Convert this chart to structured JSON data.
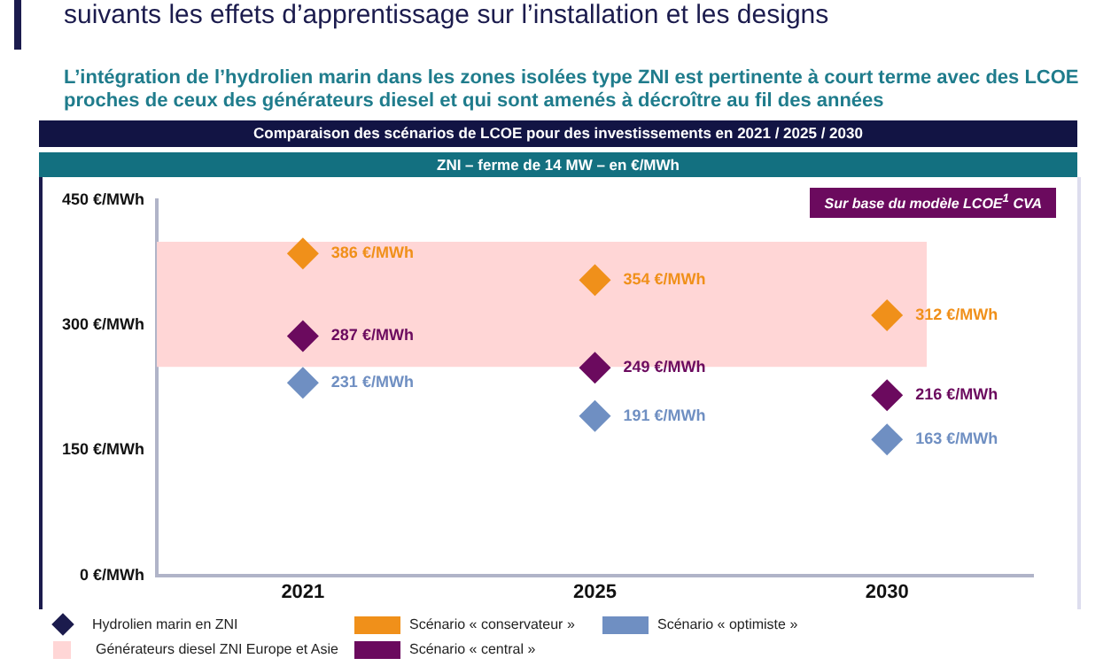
{
  "chart_data": {
    "type": "scatter",
    "title": "suivants les effets d’apprentissage sur l’installation et les designs",
    "subtitle": "L’intégration de l’hydrolien marin dans les zones isolées type ZNI est pertinente à court terme avec des LCOE proches de ceux des générateurs diesel et qui sont amenés à décroître au fil des années",
    "annotations": [
      "Comparaison des scénarios de LCOE pour des investissements en 2021 / 2025 / 2030",
      "ZNI – ferme de 14 MW – en €/MWh",
      "Sur base du modèle LCOE$^{1}$ CVA"
    ],
    "categories": [
      "2021",
      "2025",
      "2030"
    ],
    "series": [
      {
        "name": "Scénario « conservateur »",
        "color": "#f0901a",
        "values": [
          386,
          354,
          312
        ],
        "value_labels": [
          "386 €/MWh",
          "354 €/MWh",
          "312 €/MWh"
        ]
      },
      {
        "name": "Scénario « central »",
        "color": "#6b0a5e",
        "values": [
          287,
          249,
          216
        ],
        "value_labels": [
          "287 €/MWh",
          "249 €/MWh",
          "216 €/MWh"
        ]
      },
      {
        "name": "Scénario « optimiste »",
        "color": "#6f8fc2",
        "values": [
          231,
          191,
          163
        ],
        "value_labels": [
          "231 €/MWh",
          "191 €/MWh",
          "163 €/MWh"
        ]
      }
    ],
    "bands": [
      {
        "axis": "y",
        "from": 250,
        "to": 400,
        "label": "Générateurs diesel ZNI Europe et Asie",
        "color": "#ffd6d6"
      }
    ],
    "legend_title": "Hydrolien marin en ZNI",
    "ylim": [
      0,
      450
    ],
    "yticks": [
      {
        "value": 0,
        "label": "0 €/MWh"
      },
      {
        "value": 150,
        "label": "150 €/MWh"
      },
      {
        "value": 300,
        "label": "300 €/MWh"
      },
      {
        "value": 450,
        "label": "450 €/MWh"
      }
    ],
    "marker": "diamond",
    "grid": false,
    "legend": "bottom"
  }
}
